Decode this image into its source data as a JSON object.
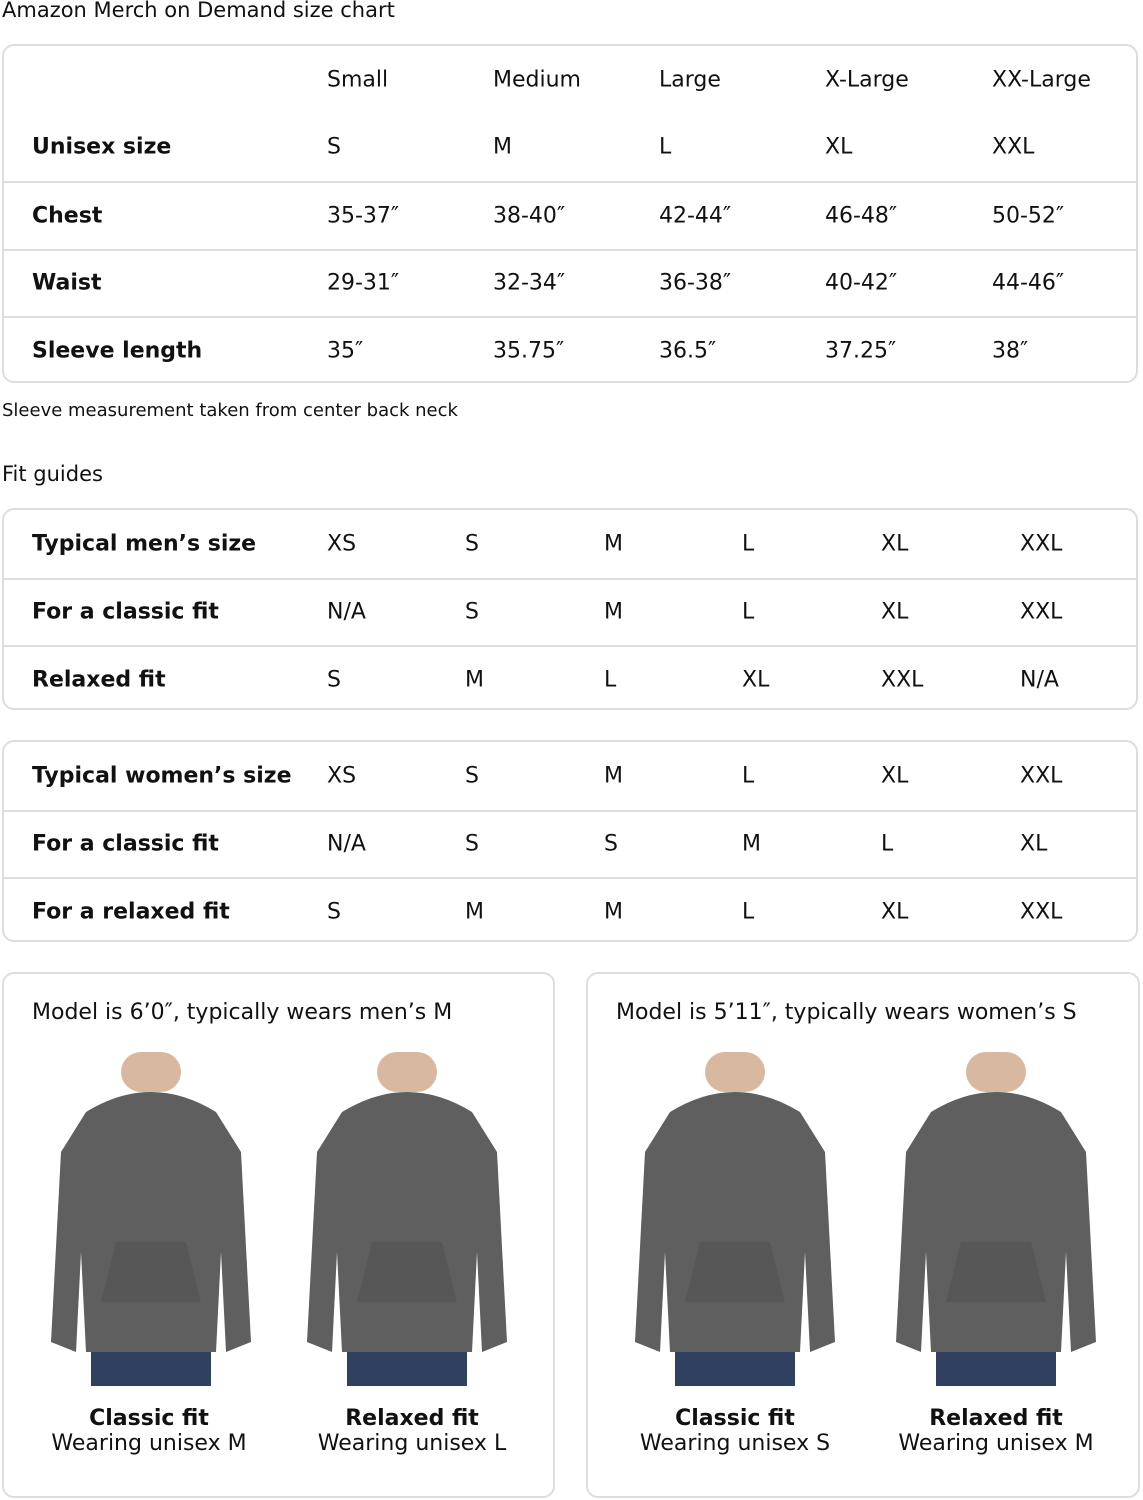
{
  "title": "Amazon Merch on Demand size chart",
  "size_chart": {
    "headers": [
      "",
      "Small",
      "Medium",
      "Large",
      "X-Large",
      "XX-Large"
    ],
    "rows": [
      {
        "label": "Unisex size",
        "values": [
          "S",
          "M",
          "L",
          "XL",
          "XXL"
        ]
      },
      {
        "label": "Chest",
        "values": [
          "35-37″",
          "38-40″",
          "42-44″",
          "46-48″",
          "50-52″"
        ]
      },
      {
        "label": "Waist",
        "values": [
          "29-31″",
          "32-34″",
          "36-38″",
          "40-42″",
          "44-46″"
        ]
      },
      {
        "label": "Sleeve length",
        "values": [
          "35″",
          "35.75″",
          "36.5″",
          "37.25″",
          "38″"
        ]
      }
    ]
  },
  "note": "Sleeve measurement taken from center back neck",
  "fit_guides_title": "Fit guides",
  "mens_fit": [
    {
      "label": "Typical men’s size",
      "values": [
        "XS",
        "S",
        "M",
        "L",
        "XL",
        "XXL"
      ]
    },
    {
      "label": "For a classic fit",
      "values": [
        "N/A",
        "S",
        "M",
        "L",
        "XL",
        "XXL"
      ]
    },
    {
      "label": "Relaxed fit",
      "values": [
        "S",
        "M",
        "L",
        "XL",
        "XXL",
        "N/A"
      ]
    }
  ],
  "womens_fit": [
    {
      "label": "Typical women’s size",
      "values": [
        "XS",
        "S",
        "M",
        "L",
        "XL",
        "XXL"
      ]
    },
    {
      "label": "For a classic fit",
      "values": [
        "N/A",
        "S",
        "S",
        "M",
        "L",
        "XL"
      ]
    },
    {
      "label": "For a relaxed fit",
      "values": [
        "S",
        "M",
        "M",
        "L",
        "XL",
        "XXL"
      ]
    }
  ],
  "models": [
    {
      "title": "Model is 6’0″, typically wears men’s M",
      "photos": [
        {
          "fit": "Classic fit",
          "wearing": "Wearing unisex M"
        },
        {
          "fit": "Relaxed fit",
          "wearing": "Wearing unisex L"
        }
      ]
    },
    {
      "title": "Model is 5’11″, typically wears women’s S",
      "photos": [
        {
          "fit": "Classic fit",
          "wearing": "Wearing unisex S"
        },
        {
          "fit": "Relaxed fit",
          "wearing": "Wearing unisex M"
        }
      ]
    }
  ],
  "colors": {
    "border": "#dddddd",
    "hoodie": "#5f5f5f",
    "jeans": "#2f4060"
  }
}
